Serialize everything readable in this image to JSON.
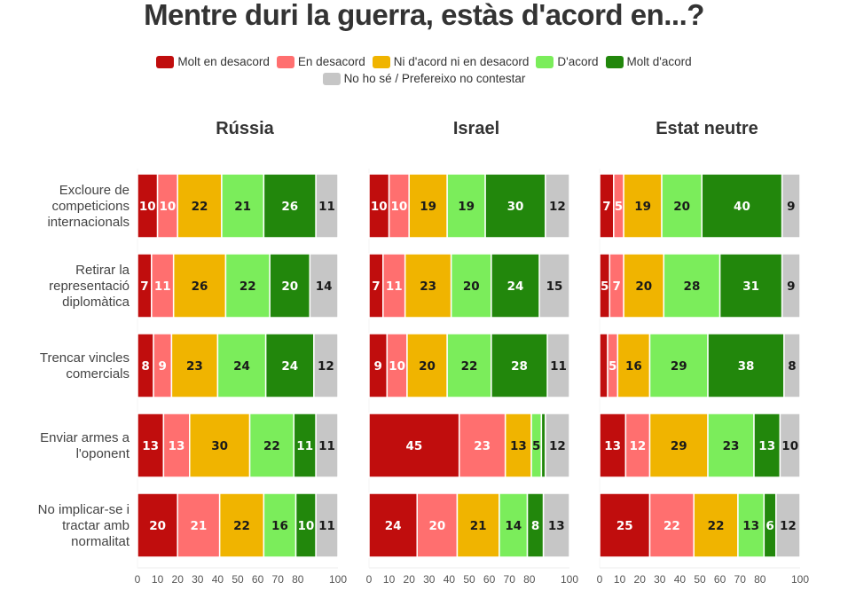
{
  "chart_data": {
    "type": "bar",
    "orientation": "horizontal",
    "stacked": true,
    "title": "Mentre duri la guerra, estàs d'acord en...?",
    "xlabel": "",
    "ylabel": "",
    "xlim": [
      0,
      100
    ],
    "x_ticks": [
      0,
      10,
      20,
      30,
      40,
      50,
      60,
      70,
      80,
      100
    ],
    "grid": false,
    "legend_position": "top-center",
    "legend": [
      {
        "name": "Molt en desacord",
        "color": "#c00d0d",
        "text_color": "#ffffff"
      },
      {
        "name": "En desacord",
        "color": "#ff6f6f",
        "text_color": "#ffffff"
      },
      {
        "name": "Ni d'acord ni en desacord",
        "color": "#f0b400",
        "text_color": "#1a1a1a"
      },
      {
        "name": "D'acord",
        "color": "#7bed5b",
        "text_color": "#1a1a1a"
      },
      {
        "name": "Molt d'acord",
        "color": "#22870c",
        "text_color": "#ffffff"
      },
      {
        "name": "No ho sé / Prefereixo no contestar",
        "color": "#c6c6c6",
        "text_color": "#1a1a1a"
      }
    ],
    "categories": [
      [
        "Excloure de",
        "competicions",
        "internacionals"
      ],
      [
        "Retirar la",
        "representació",
        "diplomàtica"
      ],
      [
        "Trencar vincles",
        "comercials"
      ],
      [
        "Enviar armes a",
        "l'oponent"
      ],
      [
        "No implicar-se i",
        "tractar amb",
        "normalitat"
      ]
    ],
    "panels": [
      {
        "name": "Rússia",
        "rows": [
          [
            10,
            10,
            22,
            21,
            26,
            11
          ],
          [
            7,
            11,
            26,
            22,
            20,
            14
          ],
          [
            8,
            9,
            23,
            24,
            24,
            12
          ],
          [
            13,
            13,
            30,
            22,
            11,
            11
          ],
          [
            20,
            21,
            22,
            16,
            10,
            11
          ]
        ],
        "hidden_labels": []
      },
      {
        "name": "Israel",
        "rows": [
          [
            10,
            10,
            19,
            19,
            30,
            12
          ],
          [
            7,
            11,
            23,
            20,
            24,
            15
          ],
          [
            9,
            10,
            20,
            22,
            28,
            11
          ],
          [
            45,
            23,
            13,
            5,
            2,
            12
          ],
          [
            24,
            20,
            21,
            14,
            8,
            13
          ]
        ],
        "hidden_labels": [
          [
            3,
            4
          ]
        ]
      },
      {
        "name": "Estat neutre",
        "rows": [
          [
            7,
            5,
            19,
            20,
            40,
            9
          ],
          [
            5,
            7,
            20,
            28,
            31,
            9
          ],
          [
            4,
            5,
            16,
            29,
            38,
            8
          ],
          [
            13,
            12,
            29,
            23,
            13,
            10
          ],
          [
            25,
            22,
            22,
            13,
            6,
            12
          ]
        ],
        "hidden_labels": [
          [
            2,
            0
          ]
        ]
      }
    ]
  }
}
